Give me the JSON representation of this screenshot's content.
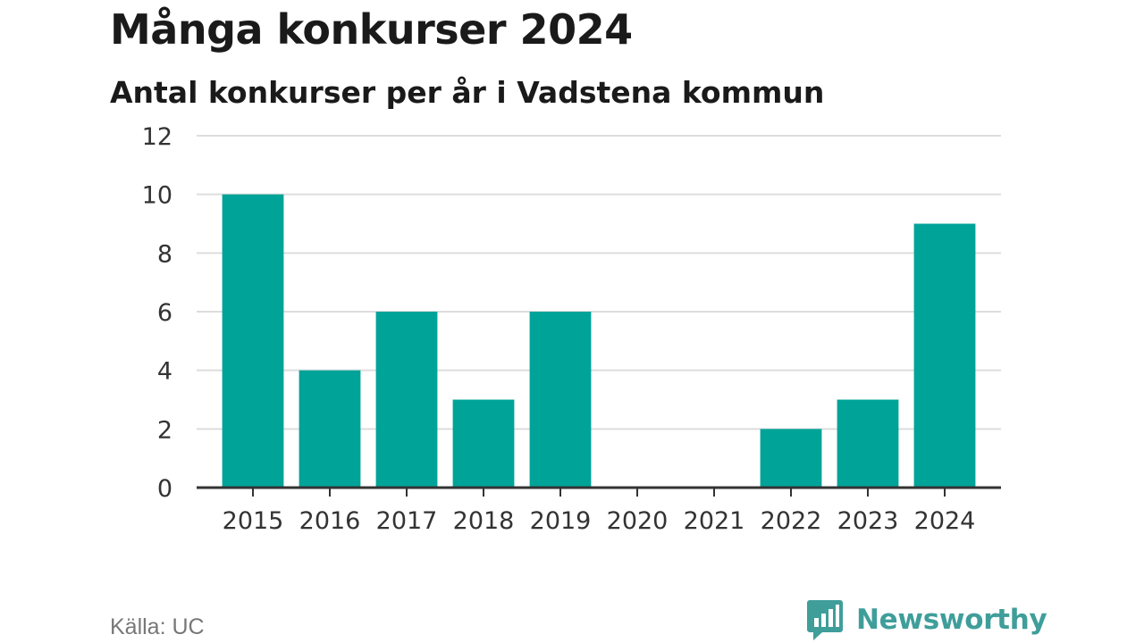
{
  "header": {
    "title": "Många konkurser 2024",
    "subtitle": "Antal konkurser per år i Vadstena kommun"
  },
  "footer": {
    "source": "Källa: UC",
    "brand": "Newsworthy",
    "brand_icon": "bar-chart-speech-bubble-icon",
    "brand_color": "#3f9e9a"
  },
  "chart_data": {
    "type": "bar",
    "title": "Många konkurser 2024",
    "subtitle": "Antal konkurser per år i Vadstena kommun",
    "categories": [
      "2015",
      "2016",
      "2017",
      "2018",
      "2019",
      "2020",
      "2021",
      "2022",
      "2023",
      "2024"
    ],
    "values": [
      10,
      4,
      6,
      3,
      6,
      0,
      0,
      2,
      3,
      9
    ],
    "xlabel": "",
    "ylabel": "",
    "ylim": [
      0,
      12
    ],
    "yticks": [
      0,
      2,
      4,
      6,
      8,
      10,
      12
    ],
    "grid": true,
    "bar_color": "#00a398"
  }
}
